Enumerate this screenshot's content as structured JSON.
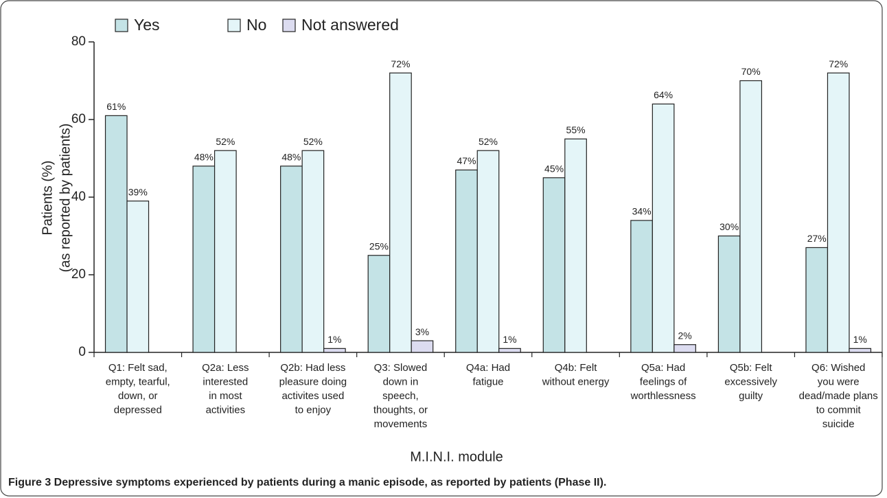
{
  "chart_data": {
    "type": "bar",
    "ylabel": [
      "Patients (%)",
      "(as reported by patients)"
    ],
    "xlabel": "M.I.N.I. module",
    "caption": "Figure 3 Depressive symptoms experienced by patients during a manic episode, as reported by patients (Phase II).",
    "categories": [
      [
        "Q1: Felt sad,",
        "empty, tearful,",
        "down, or",
        "depressed"
      ],
      [
        "Q2a: Less",
        "interested",
        "in most",
        "activities"
      ],
      [
        "Q2b: Had less",
        "pleasure doing",
        "activites used",
        "to enjoy"
      ],
      [
        "Q3: Slowed",
        "down in",
        "speech,",
        "thoughts, or",
        "movements"
      ],
      [
        "Q4a: Had",
        "fatigue"
      ],
      [
        "Q4b: Felt",
        "without energy"
      ],
      [
        "Q5a: Had",
        "feelings of",
        "worthlessness"
      ],
      [
        "Q5b: Felt",
        "excessively",
        "guilty"
      ],
      [
        "Q6: Wished",
        "you were",
        "dead/made plans",
        "to commit",
        "suicide"
      ]
    ],
    "series": [
      {
        "name": "Yes",
        "color": "#c4e3e6",
        "values": [
          61,
          48,
          48,
          25,
          47,
          45,
          34,
          30,
          27
        ],
        "value_labels": [
          "61%",
          "48%",
          "48%",
          "25%",
          "47%",
          "45%",
          "34%",
          "30%",
          "27%"
        ]
      },
      {
        "name": "No",
        "color": "#e4f5f8",
        "values": [
          39,
          52,
          52,
          72,
          52,
          55,
          64,
          70,
          72
        ],
        "value_labels": [
          "39%",
          "52%",
          "52%",
          "72%",
          "52%",
          "55%",
          "64%",
          "70%",
          "72%"
        ]
      },
      {
        "name": "Not answered",
        "color": "#dcdcf0",
        "values": [
          null,
          null,
          1,
          3,
          1,
          null,
          2,
          null,
          1
        ],
        "value_labels": [
          null,
          null,
          "1%",
          "3%",
          "1%",
          null,
          "2%",
          null,
          "1%"
        ]
      }
    ],
    "ylim": [
      0,
      80
    ],
    "yticks": [
      0,
      20,
      40,
      60,
      80
    ]
  }
}
